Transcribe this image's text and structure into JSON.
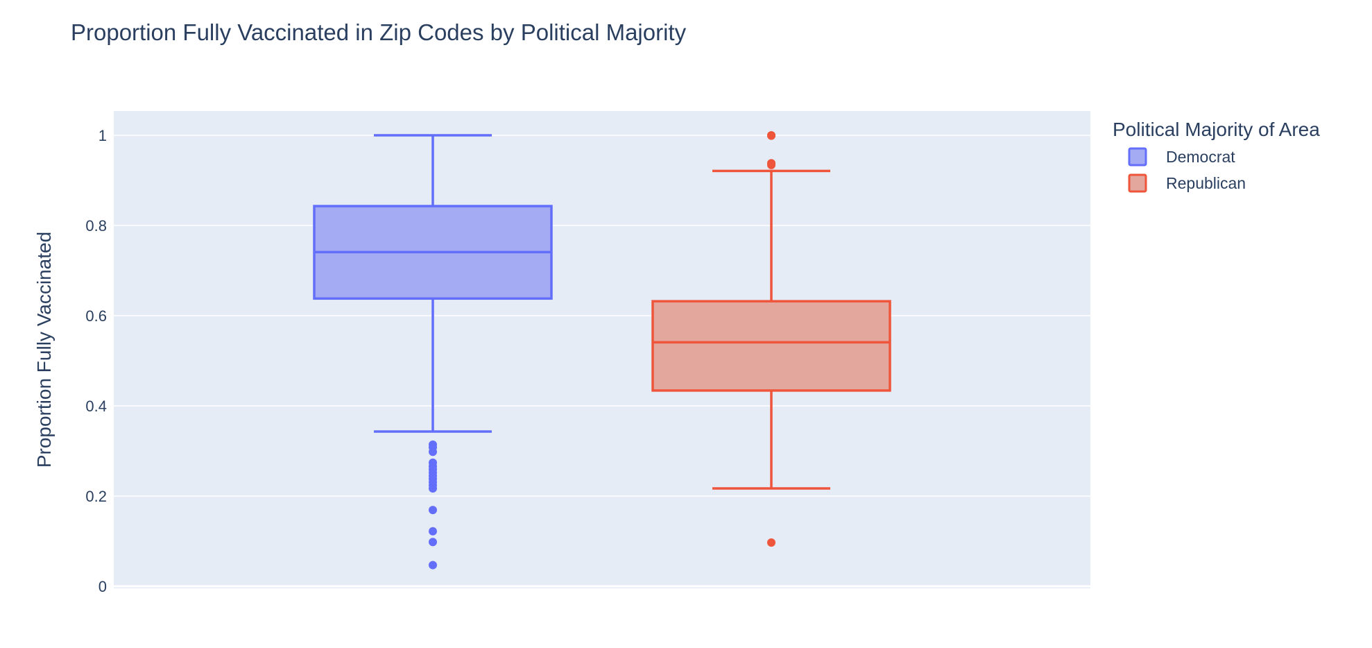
{
  "chart_data": {
    "type": "box",
    "title": "Proportion Fully Vaccinated in Zip Codes by Political Majority",
    "xlabel": "",
    "ylabel": "Proportion Fully Vaccinated",
    "ylim": [
      0,
      1.05
    ],
    "yticks": [
      0,
      0.2,
      0.4,
      0.6,
      0.8,
      1
    ],
    "ytick_labels": [
      "0",
      "0.2",
      "0.4",
      "0.6",
      "0.8",
      "1"
    ],
    "grid": true,
    "legend": {
      "title": "Political Majority of Area",
      "placement": "top-right"
    },
    "series": [
      {
        "name": "Democrat",
        "color": "#636efa",
        "fill": "#a4abf2",
        "whisker_low": 0.343,
        "q1": 0.638,
        "median": 0.741,
        "q3": 0.843,
        "whisker_high": 1.0,
        "outliers": [
          0.314,
          0.308,
          0.298,
          0.274,
          0.266,
          0.259,
          0.252,
          0.245,
          0.238,
          0.231,
          0.224,
          0.217,
          0.169,
          0.122,
          0.098,
          0.047
        ]
      },
      {
        "name": "Republican",
        "color": "#ef553b",
        "fill": "#e3a79d",
        "whisker_low": 0.217,
        "q1": 0.434,
        "median": 0.541,
        "q3": 0.632,
        "whisker_high": 0.921,
        "outliers": [
          1.0,
          0.999,
          0.938,
          0.934,
          0.097
        ]
      }
    ]
  }
}
